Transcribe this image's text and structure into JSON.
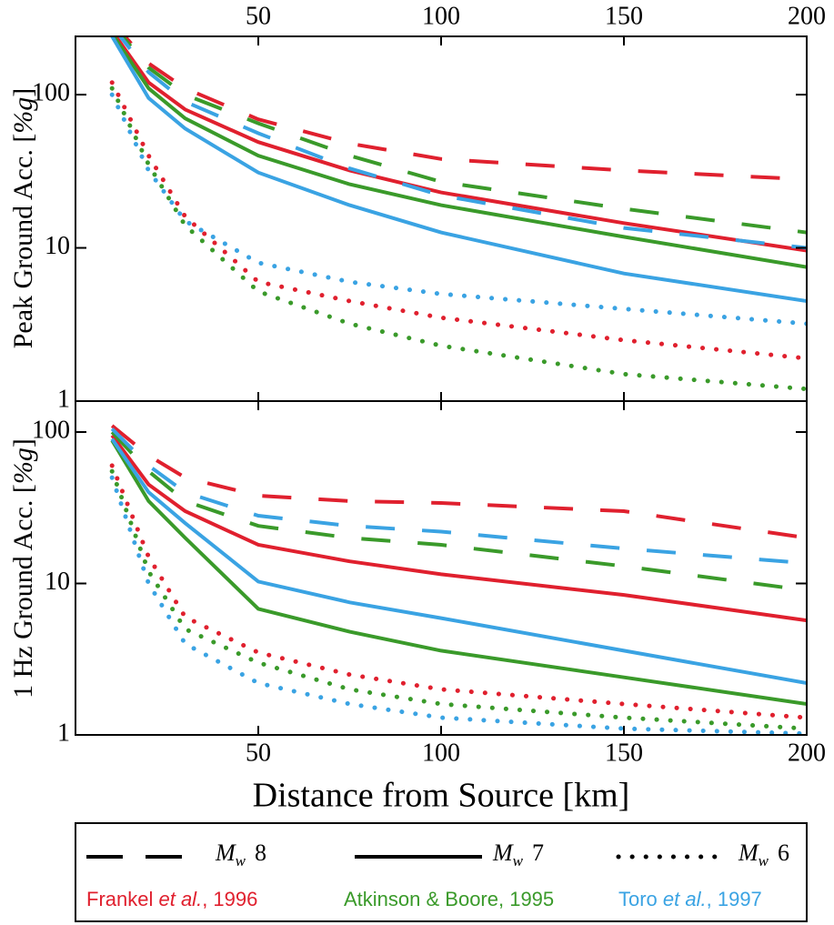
{
  "chart_data": [
    {
      "type": "line",
      "ylabel": "Peak Ground Acc. [",
      "ylabel_unit": "%g",
      "ylabel_end": "]",
      "log_y": true,
      "xlim": [
        0,
        200
      ],
      "ylim": [
        1,
        240
      ],
      "xticks": [
        50,
        100,
        150,
        200
      ],
      "yticks": [
        1,
        10,
        100
      ],
      "series": [
        {
          "color": "#e0202e",
          "style": "solid",
          "x": [
            10,
            20,
            30,
            50,
            75,
            100,
            150,
            200
          ],
          "values": [
            260,
            120,
            80,
            49,
            32,
            23,
            14.5,
            9.6
          ]
        },
        {
          "color": "#3a9a2a",
          "style": "solid",
          "x": [
            10,
            20,
            30,
            50,
            75,
            100,
            150,
            200
          ],
          "values": [
            250,
            110,
            70,
            40,
            26,
            19,
            11.8,
            7.5
          ]
        },
        {
          "color": "#3aa3e3",
          "style": "solid",
          "x": [
            10,
            20,
            30,
            50,
            75,
            100,
            150,
            200
          ],
          "values": [
            240,
            95,
            60,
            31,
            19,
            12.6,
            6.8,
            4.5
          ]
        },
        {
          "color": "#e0202e",
          "style": "dashed",
          "x": [
            10,
            20,
            30,
            50,
            75,
            100,
            150,
            200
          ],
          "values": [
            300,
            160,
            110,
            69,
            48,
            38,
            32,
            28
          ]
        },
        {
          "color": "#3a9a2a",
          "style": "dashed",
          "x": [
            10,
            20,
            30,
            50,
            75,
            100,
            150,
            200
          ],
          "values": [
            290,
            150,
            100,
            65,
            40,
            27,
            18,
            12.6
          ]
        },
        {
          "color": "#3aa3e3",
          "style": "dashed",
          "x": [
            10,
            20,
            30,
            50,
            75,
            100,
            150,
            200
          ],
          "values": [
            280,
            140,
            90,
            56,
            33,
            22,
            13.5,
            10
          ]
        },
        {
          "color": "#e0202e",
          "style": "dotted",
          "x": [
            10,
            20,
            30,
            50,
            75,
            100,
            150,
            200
          ],
          "values": [
            120,
            40,
            16,
            6,
            4.5,
            3.5,
            2.5,
            1.9
          ]
        },
        {
          "color": "#3a9a2a",
          "style": "dotted",
          "x": [
            10,
            20,
            30,
            50,
            75,
            100,
            150,
            200
          ],
          "values": [
            110,
            35,
            14,
            5.2,
            3.2,
            2.3,
            1.5,
            1.2
          ]
        },
        {
          "color": "#3aa3e3",
          "style": "dotted",
          "x": [
            10,
            20,
            30,
            50,
            75,
            100,
            150,
            200
          ],
          "values": [
            100,
            32,
            15,
            8,
            6,
            5,
            4,
            3.2
          ]
        }
      ]
    },
    {
      "type": "line",
      "ylabel": "1 Hz Ground Acc. [",
      "ylabel_unit": "%g",
      "ylabel_end": "]",
      "xlabel": "Distance from Source [km]",
      "log_y": true,
      "xlim": [
        0,
        200
      ],
      "ylim": [
        1,
        160
      ],
      "xticks": [
        50,
        100,
        150,
        200
      ],
      "yticks": [
        1,
        10,
        100
      ],
      "series": [
        {
          "color": "#e0202e",
          "style": "solid",
          "x": [
            10,
            20,
            30,
            50,
            75,
            100,
            150,
            200
          ],
          "values": [
            95,
            45,
            30,
            18,
            14,
            11.5,
            8.4,
            5.7
          ]
        },
        {
          "color": "#3a9a2a",
          "style": "solid",
          "x": [
            10,
            20,
            30,
            50,
            75,
            100,
            150,
            200
          ],
          "values": [
            88,
            35,
            20,
            6.8,
            4.8,
            3.6,
            2.4,
            1.6
          ]
        },
        {
          "color": "#3aa3e3",
          "style": "solid",
          "x": [
            10,
            20,
            30,
            50,
            75,
            100,
            150,
            200
          ],
          "values": [
            90,
            40,
            25,
            10.3,
            7.5,
            5.9,
            3.6,
            2.2
          ]
        },
        {
          "color": "#e0202e",
          "style": "dashed",
          "x": [
            10,
            20,
            30,
            50,
            75,
            100,
            150,
            200
          ],
          "values": [
            110,
            70,
            50,
            38,
            35,
            34,
            30,
            20
          ]
        },
        {
          "color": "#3a9a2a",
          "style": "dashed",
          "x": [
            10,
            20,
            30,
            50,
            75,
            100,
            150,
            200
          ],
          "values": [
            100,
            55,
            35,
            24,
            20,
            18,
            13,
            9
          ]
        },
        {
          "color": "#3aa3e3",
          "style": "dashed",
          "x": [
            10,
            20,
            30,
            50,
            75,
            100,
            150,
            200
          ],
          "values": [
            105,
            60,
            40,
            28,
            24,
            22,
            17,
            13.6
          ]
        },
        {
          "color": "#e0202e",
          "style": "dotted",
          "x": [
            10,
            20,
            30,
            50,
            75,
            100,
            150,
            200
          ],
          "values": [
            60,
            15,
            6,
            3.5,
            2.5,
            2,
            1.6,
            1.3
          ]
        },
        {
          "color": "#3a9a2a",
          "style": "dotted",
          "x": [
            10,
            20,
            30,
            50,
            75,
            100,
            150,
            200
          ],
          "values": [
            55,
            12,
            5,
            3,
            2,
            1.6,
            1.3,
            1.1
          ]
        },
        {
          "color": "#3aa3e3",
          "style": "dotted",
          "x": [
            10,
            20,
            30,
            50,
            75,
            100,
            150,
            200
          ],
          "values": [
            50,
            10,
            4,
            2.2,
            1.6,
            1.3,
            1.1,
            1.02
          ]
        }
      ]
    }
  ],
  "legend": {
    "magnitudes": [
      {
        "style": "dashed",
        "symbol": "M",
        "subscript": "w",
        "value": "8"
      },
      {
        "style": "solid",
        "symbol": "M",
        "subscript": "w",
        "value": "7"
      },
      {
        "style": "dotted",
        "symbol": "M",
        "subscript": "w",
        "value": "6"
      }
    ],
    "authors": [
      {
        "color": "#e0202e",
        "name": "Frankel ",
        "italic": "et al.",
        "year": ", 1996"
      },
      {
        "color": "#3a9a2a",
        "name": "Atkinson & Boore, 1995",
        "italic": "",
        "year": ""
      },
      {
        "color": "#3aa3e3",
        "name": "Toro ",
        "italic": "et al.",
        "year": ", 1997"
      }
    ]
  }
}
